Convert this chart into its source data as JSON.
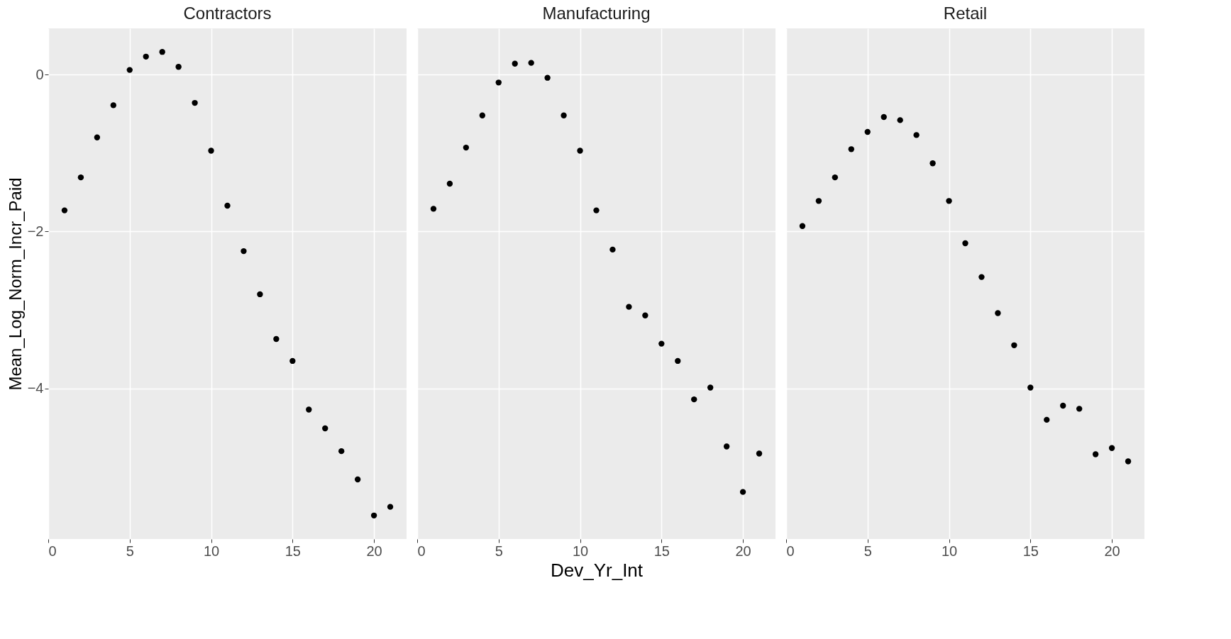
{
  "chart_data": [
    {
      "type": "scatter",
      "title": "Contractors",
      "ylabel": "Mean_Log_Norm_Incr_Paid",
      "x": [
        1,
        2,
        3,
        4,
        5,
        6,
        7,
        8,
        9,
        10,
        11,
        12,
        13,
        14,
        15,
        16,
        17,
        18,
        19,
        20,
        21
      ],
      "series": [
        {
          "color": "#000000",
          "values": [
            -1.73,
            -1.31,
            -0.8,
            -0.39,
            0.06,
            0.23,
            0.29,
            0.1,
            -0.36,
            -0.97,
            -1.67,
            -2.25,
            -2.8,
            -3.37,
            -3.65,
            -4.27,
            -4.51,
            -4.8,
            -5.16,
            -5.62,
            -5.51
          ]
        }
      ],
      "xlim": [
        0,
        22
      ],
      "ylim": [
        -5.92,
        0.59
      ],
      "xticks": [
        0,
        5,
        10,
        15,
        20
      ],
      "yticks": [
        -4,
        -2,
        0
      ],
      "grid": true,
      "marker": "circle"
    },
    {
      "type": "scatter",
      "title": "Manufacturing",
      "xlabel": "Dev_Yr_Int",
      "x": [
        1,
        2,
        3,
        4,
        5,
        6,
        7,
        8,
        9,
        10,
        11,
        12,
        13,
        14,
        15,
        16,
        17,
        18,
        19,
        20,
        21
      ],
      "series": [
        {
          "color": "#000000",
          "values": [
            -1.71,
            -1.39,
            -0.93,
            -0.52,
            -0.1,
            0.14,
            0.15,
            -0.04,
            -0.52,
            -0.97,
            -1.73,
            -2.23,
            -2.96,
            -3.07,
            -3.43,
            -3.65,
            -4.14,
            -3.99,
            -4.74,
            -5.32,
            -4.83
          ]
        }
      ],
      "xlim": [
        0,
        22
      ],
      "ylim": [
        -5.92,
        0.59
      ],
      "xticks": [
        0,
        5,
        10,
        15,
        20
      ],
      "yticks": [
        -4,
        -2,
        0
      ],
      "grid": true,
      "marker": "circle",
      "tick_labels": "x"
    },
    {
      "type": "scatter",
      "title": "Retail",
      "x": [
        1,
        2,
        3,
        4,
        5,
        6,
        7,
        8,
        9,
        10,
        11,
        12,
        13,
        14,
        15,
        16,
        17,
        18,
        19,
        20,
        21
      ],
      "series": [
        {
          "color": "#000000",
          "values": [
            -1.93,
            -1.61,
            -1.31,
            -0.95,
            -0.73,
            -0.54,
            -0.58,
            -0.77,
            -1.13,
            -1.61,
            -2.15,
            -2.58,
            -3.04,
            -3.45,
            -3.99,
            -4.4,
            -4.22,
            -4.26,
            -4.84,
            -4.76,
            -4.93
          ]
        }
      ],
      "xlim": [
        0,
        22
      ],
      "ylim": [
        -5.92,
        0.59
      ],
      "xticks": [
        0,
        5,
        10,
        15,
        20
      ],
      "yticks": [
        -4,
        -2,
        0
      ],
      "grid": true,
      "marker": "circle",
      "tick_labels": "x"
    }
  ]
}
